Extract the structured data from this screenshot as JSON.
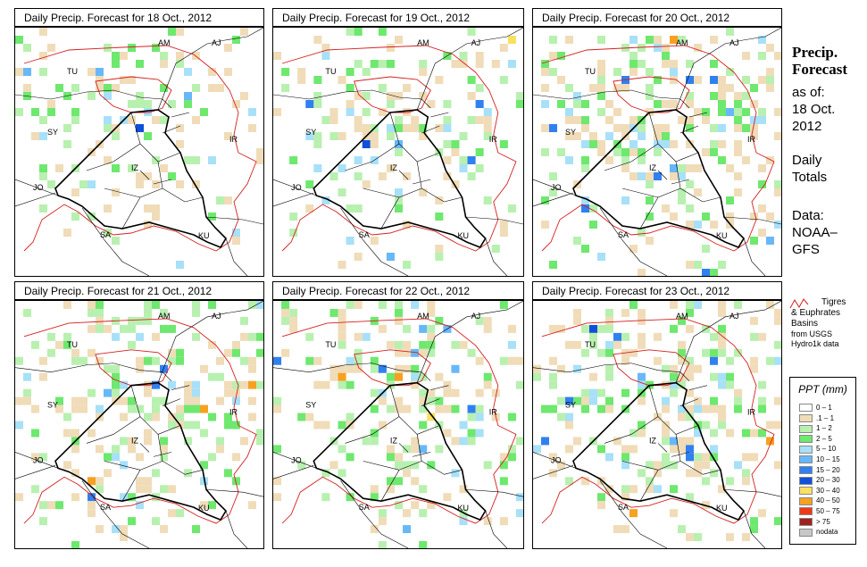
{
  "panels": [
    {
      "title": "Daily Precip. Forecast for  18 Oct., 2012",
      "seed": 11,
      "intensity": 0.55
    },
    {
      "title": "Daily Precip. Forecast for  19 Oct., 2012",
      "seed": 23,
      "intensity": 0.6
    },
    {
      "title": "Daily Precip. Forecast for  20 Oct., 2012",
      "seed": 37,
      "intensity": 0.95
    },
    {
      "title": "Daily Precip. Forecast for  21 Oct., 2012",
      "seed": 41,
      "intensity": 1.0
    },
    {
      "title": "Daily Precip. Forecast for  22 Oct., 2012",
      "seed": 53,
      "intensity": 0.9
    },
    {
      "title": "Daily Precip. Forecast for  23 Oct., 2012",
      "seed": 67,
      "intensity": 0.95
    }
  ],
  "map_labels": {
    "AM": "AM",
    "AJ": "AJ",
    "TU": "TU",
    "SY": "SY",
    "IR": "IR",
    "JO": "JO",
    "SA": "SA",
    "KU": "KU",
    "IZ": "IZ"
  },
  "side": {
    "heading1": "Precip.",
    "heading2": "Forecast",
    "asof": "as of:",
    "date1": "18 Oct.",
    "date2": "2012",
    "daily1": "Daily",
    "daily2": "Totals",
    "data1": "Data:",
    "data2": "NOAA–",
    "data3": "GFS"
  },
  "basins_legend": {
    "line1": "Tigres",
    "line2": "& Euphrates",
    "line3": "Basins",
    "line4": "from USGS",
    "line5": "Hydro1k data",
    "color": "#d42020"
  },
  "ppt_legend": {
    "title": "PPT (mm)",
    "classes": [
      {
        "label": "0 – 1",
        "color": "#ffffff"
      },
      {
        "label": ".1 – 1",
        "color": "#f0dcb8"
      },
      {
        "label": "1 – 2",
        "color": "#b8f0b0"
      },
      {
        "label": "2 – 5",
        "color": "#6ee86e"
      },
      {
        "label": "5 – 10",
        "color": "#a8e0f8"
      },
      {
        "label": "10 – 15",
        "color": "#68b8f8"
      },
      {
        "label": "15 – 20",
        "color": "#3080f0"
      },
      {
        "label": "20 – 30",
        "color": "#1050d8"
      },
      {
        "label": "30 – 40",
        "color": "#f8e060"
      },
      {
        "label": "40 – 50",
        "color": "#f8a020"
      },
      {
        "label": "50 – 75",
        "color": "#f03818"
      },
      {
        "label": "> 75",
        "color": "#a02020"
      },
      {
        "label": "nodata",
        "color": "#c8c8c8"
      }
    ]
  }
}
